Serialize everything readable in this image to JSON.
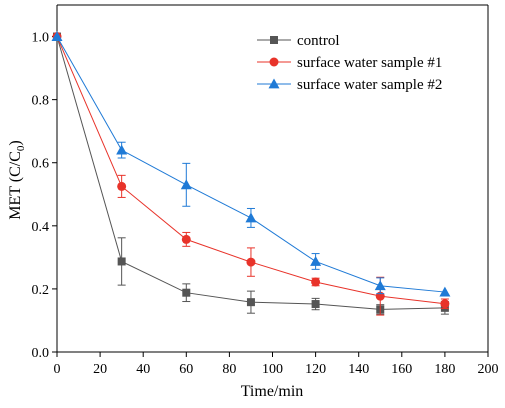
{
  "chart_data": {
    "type": "line",
    "xlabel": "Time/min",
    "ylabel_main": "MET (C/C",
    "ylabel_sub": "0",
    "ylabel_close": ")",
    "xlim": [
      0,
      200
    ],
    "ylim": [
      0.0,
      1.1
    ],
    "xticks": [
      0,
      20,
      40,
      60,
      80,
      100,
      120,
      140,
      160,
      180,
      200
    ],
    "yticks": [
      0.0,
      0.2,
      0.4,
      0.6,
      0.8,
      1.0
    ],
    "ytick_labels": [
      "0.0",
      "0.2",
      "0.4",
      "0.6",
      "0.8",
      "1.0"
    ],
    "grid": false,
    "legend_position": "top-right",
    "x": [
      0,
      30,
      60,
      90,
      120,
      150,
      180
    ],
    "series": [
      {
        "name": "control",
        "color": "#555555",
        "marker": "square",
        "values": [
          1.0,
          0.287,
          0.188,
          0.158,
          0.152,
          0.135,
          0.14
        ],
        "errors": [
          0.0,
          0.075,
          0.028,
          0.035,
          0.018,
          0.015,
          0.02
        ]
      },
      {
        "name": "surface water sample #1",
        "color": "#e8332a",
        "marker": "circle",
        "values": [
          1.0,
          0.525,
          0.357,
          0.285,
          0.222,
          0.177,
          0.153
        ],
        "errors": [
          0.0,
          0.035,
          0.022,
          0.045,
          0.012,
          0.06,
          0.015
        ]
      },
      {
        "name": "surface water sample #2",
        "color": "#1f7ad6",
        "marker": "triangle",
        "values": [
          1.0,
          0.64,
          0.53,
          0.425,
          0.287,
          0.21,
          0.19
        ],
        "errors": [
          0.0,
          0.025,
          0.068,
          0.03,
          0.025,
          0.025,
          0.0
        ]
      }
    ]
  }
}
